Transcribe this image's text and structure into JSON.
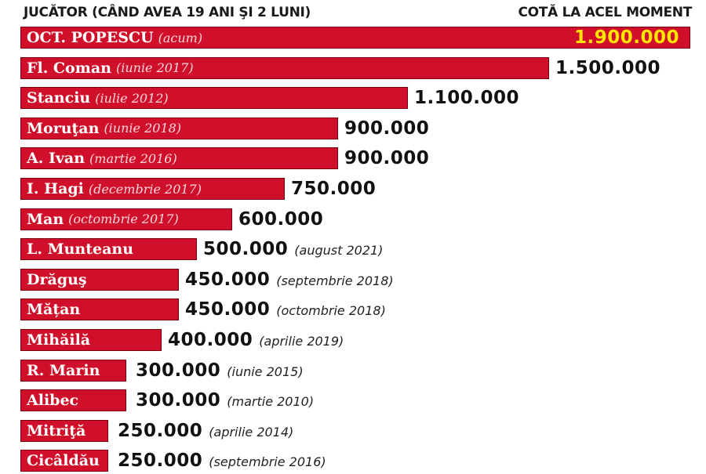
{
  "header": {
    "left": "JUCĂTOR (CÂND AVEA 19 ANI ŞI 2 LUNI)",
    "right": "COTĂ LA ACEL MOMENT"
  },
  "chart_data": {
    "type": "bar",
    "orientation": "horizontal",
    "xlim": [
      0,
      1900000
    ],
    "grid": false,
    "colors": {
      "bar": "#d0102a",
      "highlight_value": "#ffe600",
      "value": "#111111"
    },
    "rows": [
      {
        "name": "OCT. POPESCU",
        "date": "(acum)",
        "value": 1900000,
        "value_label": "1.900.000",
        "value_date": ""
      },
      {
        "name": "Fl. Coman",
        "date": "(iunie 2017)",
        "value": 1500000,
        "value_label": "1.500.000",
        "value_date": ""
      },
      {
        "name": "Stanciu",
        "date": "(iulie 2012)",
        "value": 1100000,
        "value_label": "1.100.000",
        "value_date": ""
      },
      {
        "name": "Moruţan",
        "date": "(iunie 2018)",
        "value": 900000,
        "value_label": "900.000",
        "value_date": ""
      },
      {
        "name": "A. Ivan",
        "date": "(martie 2016)",
        "value": 900000,
        "value_label": "900.000",
        "value_date": ""
      },
      {
        "name": "I. Hagi",
        "date": "(decembrie 2017)",
        "value": 750000,
        "value_label": "750.000",
        "value_date": ""
      },
      {
        "name": "Man",
        "date": "(octombrie 2017)",
        "value": 600000,
        "value_label": "600.000",
        "value_date": ""
      },
      {
        "name": "L. Munteanu",
        "date": "",
        "value": 500000,
        "value_label": "500.000",
        "value_date": "(august 2021)"
      },
      {
        "name": "Drăguş",
        "date": "",
        "value": 450000,
        "value_label": "450.000",
        "value_date": "(septembrie 2018)"
      },
      {
        "name": "Mățan",
        "date": "",
        "value": 450000,
        "value_label": "450.000",
        "value_date": "(octombrie 2018)"
      },
      {
        "name": "Mihăilă",
        "date": "",
        "value": 400000,
        "value_label": "400.000",
        "value_date": "(aprilie 2019)"
      },
      {
        "name": "R. Marin",
        "date": "",
        "value": 300000,
        "value_label": "300.000",
        "value_date": "(iunie 2015)"
      },
      {
        "name": "Alibec",
        "date": "",
        "value": 300000,
        "value_label": "300.000",
        "value_date": "(martie 2010)"
      },
      {
        "name": "Mitriţă",
        "date": "",
        "value": 250000,
        "value_label": "250.000",
        "value_date": "(aprilie 2014)"
      },
      {
        "name": "Cicâldău",
        "date": "",
        "value": 250000,
        "value_label": "250.000",
        "value_date": "(septembrie 2016)"
      }
    ]
  }
}
